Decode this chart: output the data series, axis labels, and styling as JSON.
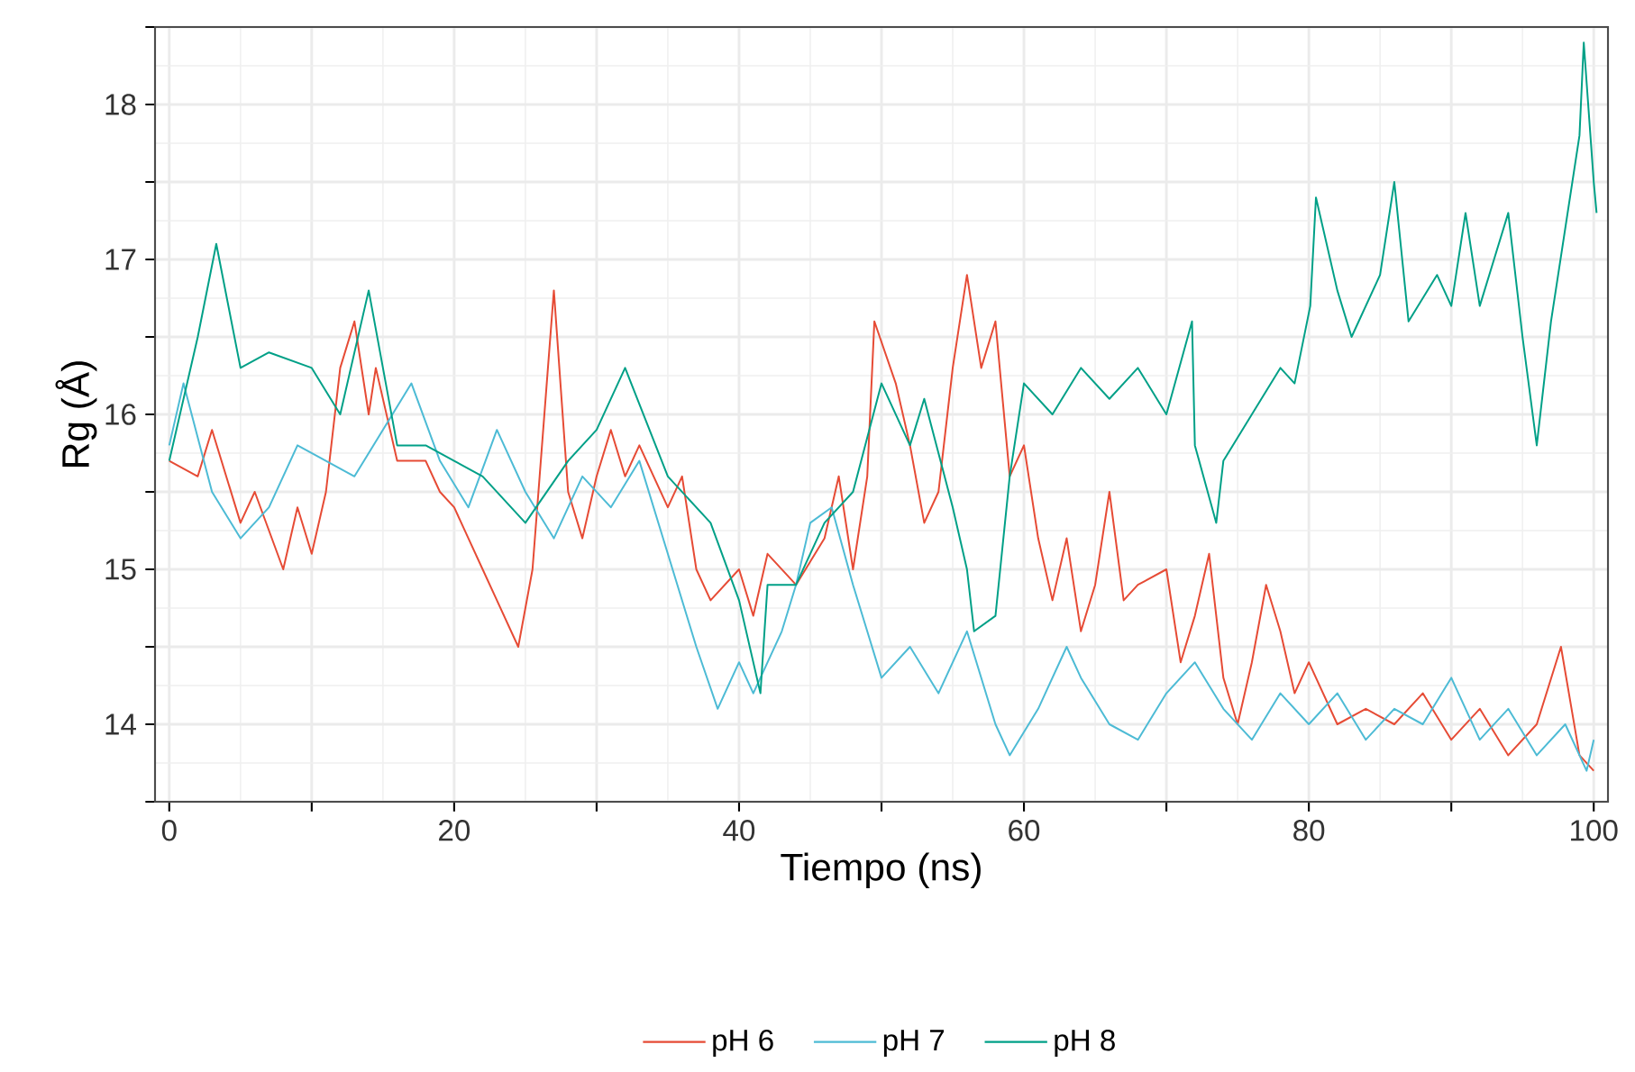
{
  "chart_data": {
    "type": "line",
    "xlabel": "Tiempo (ns)",
    "ylabel": "Rg (Å)",
    "xlim": [
      -1,
      101
    ],
    "ylim": [
      13.5,
      18.5
    ],
    "xticks": [
      0,
      {
        "value": 10,
        "label": null
      },
      20,
      {
        "value": 30,
        "label": null
      },
      40,
      {
        "value": 50,
        "label": null
      },
      60,
      {
        "value": 70,
        "label": null
      },
      80,
      {
        "value": 90,
        "label": null
      },
      100
    ],
    "yticks": [
      {
        "value": 13.5,
        "label": null
      },
      14,
      {
        "value": 14.5,
        "label": null
      },
      15,
      {
        "value": 15.5,
        "label": null
      },
      16,
      {
        "value": 16.5,
        "label": null
      },
      17,
      {
        "value": 17.5,
        "label": null
      },
      18,
      {
        "value": 18.5,
        "label": null
      }
    ],
    "grid": true,
    "legend": "bottom",
    "series": [
      {
        "name": "pH 6",
        "color": "#e64b35",
        "x": [
          0,
          2,
          3,
          5,
          6,
          8,
          9,
          10,
          11,
          12,
          13,
          14,
          14.5,
          16,
          18,
          19,
          20,
          21,
          22,
          23,
          24.5,
          25.5,
          26,
          27,
          28,
          29,
          30,
          31,
          32,
          33,
          35,
          36,
          37,
          38,
          40,
          41,
          42,
          44,
          46,
          47,
          48,
          49,
          49.5,
          51,
          52,
          53,
          54,
          55,
          56,
          57,
          58,
          59,
          60,
          61,
          62,
          63,
          64,
          65,
          66,
          67,
          68,
          70,
          71,
          72,
          73,
          74,
          75,
          76,
          77,
          78,
          79,
          80,
          82,
          84,
          86,
          88,
          90,
          92,
          94,
          96,
          97.7,
          99,
          100
        ],
        "values": [
          15.7,
          15.6,
          15.9,
          15.3,
          15.5,
          15.0,
          15.4,
          15.1,
          15.5,
          16.3,
          16.6,
          16.0,
          16.3,
          15.7,
          15.7,
          15.5,
          15.4,
          15.2,
          15.0,
          14.8,
          14.5,
          15.0,
          15.6,
          16.8,
          15.5,
          15.2,
          15.6,
          15.9,
          15.6,
          15.8,
          15.4,
          15.6,
          15.0,
          14.8,
          15.0,
          14.7,
          15.1,
          14.9,
          15.2,
          15.6,
          15.0,
          15.6,
          16.6,
          16.2,
          15.8,
          15.3,
          15.5,
          16.3,
          16.9,
          16.3,
          16.6,
          15.6,
          15.8,
          15.2,
          14.8,
          15.2,
          14.6,
          14.9,
          15.5,
          14.8,
          14.9,
          15.0,
          14.4,
          14.7,
          15.1,
          14.3,
          14.0,
          14.4,
          14.9,
          14.6,
          14.2,
          14.4,
          14.0,
          14.1,
          14.0,
          14.2,
          13.9,
          14.1,
          13.8,
          14.0,
          14.5,
          13.8,
          13.7
        ]
      },
      {
        "name": "pH 7",
        "color": "#4dbbd5",
        "x": [
          0,
          1,
          3,
          5,
          7,
          9,
          11,
          13,
          15,
          17,
          19,
          21,
          23,
          25,
          27,
          29,
          31,
          33,
          35,
          37,
          38.5,
          40,
          41,
          43,
          44,
          45,
          46.5,
          48,
          49,
          50,
          52,
          54,
          56,
          58,
          59,
          61,
          63,
          64,
          66,
          68,
          70,
          72,
          74,
          76,
          78,
          80,
          82,
          84,
          86,
          88,
          90,
          92,
          94,
          96,
          98,
          99.5,
          100
        ],
        "values": [
          15.8,
          16.2,
          15.5,
          15.2,
          15.4,
          15.8,
          15.7,
          15.6,
          15.9,
          16.2,
          15.7,
          15.4,
          15.9,
          15.5,
          15.2,
          15.6,
          15.4,
          15.7,
          15.1,
          14.5,
          14.1,
          14.4,
          14.2,
          14.6,
          14.9,
          15.3,
          15.4,
          14.9,
          14.6,
          14.3,
          14.5,
          14.2,
          14.6,
          14.0,
          13.8,
          14.1,
          14.5,
          14.3,
          14.0,
          13.9,
          14.2,
          14.4,
          14.1,
          13.9,
          14.2,
          14.0,
          14.2,
          13.9,
          14.1,
          14.0,
          14.3,
          13.9,
          14.1,
          13.8,
          14.0,
          13.7,
          13.9
        ]
      },
      {
        "name": "pH 8",
        "color": "#00a087",
        "x": [
          0,
          2,
          3.3,
          5,
          7,
          10,
          12,
          14,
          16,
          18,
          20,
          22,
          25,
          28,
          30,
          32,
          35,
          38,
          40,
          41.5,
          42,
          44,
          46,
          48,
          50,
          52,
          53,
          55,
          56,
          56.5,
          58,
          59,
          60,
          62,
          64,
          66,
          68,
          70,
          71.8,
          72,
          73.5,
          74,
          76,
          78,
          79,
          80.1,
          80.5,
          82,
          83,
          85,
          86,
          87,
          89,
          90,
          91,
          92,
          93,
          94,
          95,
          96,
          97,
          98,
          99,
          99.3,
          100,
          100.2
        ],
        "values": [
          15.7,
          16.5,
          17.1,
          16.3,
          16.4,
          16.3,
          16.0,
          16.8,
          15.8,
          15.8,
          15.7,
          15.6,
          15.3,
          15.7,
          15.9,
          16.3,
          15.6,
          15.3,
          14.8,
          14.2,
          14.9,
          14.9,
          15.3,
          15.5,
          16.2,
          15.8,
          16.1,
          15.4,
          15.0,
          14.6,
          14.7,
          15.6,
          16.2,
          16.0,
          16.3,
          16.1,
          16.3,
          16.0,
          16.6,
          15.8,
          15.3,
          15.7,
          16.0,
          16.3,
          16.2,
          16.7,
          17.4,
          16.8,
          16.5,
          16.9,
          17.5,
          16.6,
          16.9,
          16.7,
          17.3,
          16.7,
          17.0,
          17.3,
          16.5,
          15.8,
          16.6,
          17.2,
          17.8,
          18.4,
          17.5,
          17.3
        ]
      }
    ]
  }
}
